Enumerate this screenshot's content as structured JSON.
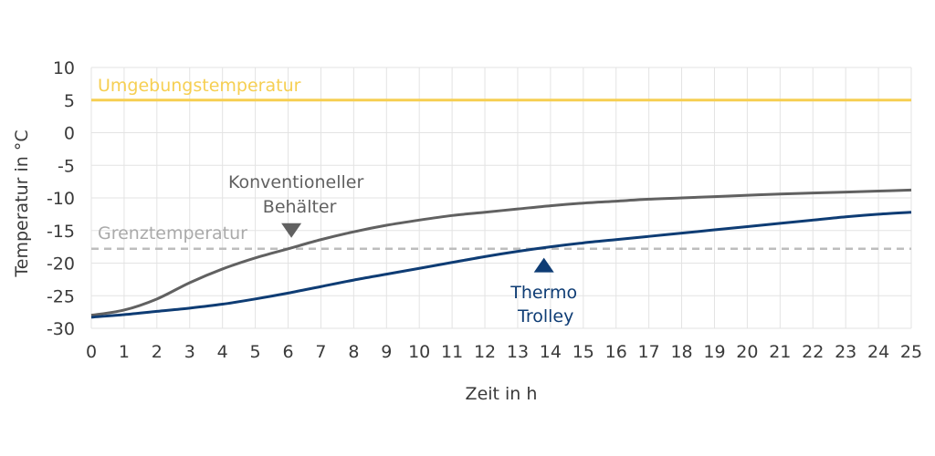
{
  "chart_data": {
    "type": "line",
    "title": "",
    "xlabel": "Zeit in h",
    "ylabel": "Temperatur in °C",
    "xlim": [
      0,
      25
    ],
    "ylim": [
      -30,
      10
    ],
    "x_ticks": [
      "0",
      "1",
      "2",
      "3",
      "4",
      "5",
      "6",
      "7",
      "8",
      "9",
      "10",
      "11",
      "12",
      "13",
      "14",
      "15",
      "16",
      "17",
      "18",
      "19",
      "20",
      "21",
      "22",
      "23",
      "24",
      "25"
    ],
    "y_ticks": [
      "10",
      "5",
      "0",
      "-5",
      "-10",
      "-15",
      "-20",
      "-25",
      "-30"
    ],
    "grid": true,
    "series": [
      {
        "name": "Konventioneller Behälter",
        "color": "#616161",
        "x": [
          0,
          1,
          2,
          3,
          4,
          5,
          6,
          7,
          8,
          9,
          10,
          11,
          12,
          13,
          14,
          15,
          16,
          17,
          18,
          19,
          20,
          21,
          22,
          23,
          24,
          25
        ],
        "y": [
          -28,
          -27.2,
          -25.5,
          -23,
          -20.9,
          -19.2,
          -17.8,
          -16.4,
          -15.2,
          -14.2,
          -13.4,
          -12.7,
          -12.2,
          -11.7,
          -11.2,
          -10.8,
          -10.5,
          -10.2,
          -10,
          -9.8,
          -9.6,
          -9.4,
          -9.25,
          -9.1,
          -8.95,
          -8.8
        ]
      },
      {
        "name": "Thermo Trolley",
        "color": "#0e3c74",
        "x": [
          0,
          1,
          2,
          3,
          4,
          5,
          6,
          7,
          8,
          9,
          10,
          11,
          12,
          13,
          14,
          15,
          16,
          17,
          18,
          19,
          20,
          21,
          22,
          23,
          24,
          25
        ],
        "y": [
          -28.3,
          -27.9,
          -27.4,
          -26.9,
          -26.3,
          -25.5,
          -24.6,
          -23.6,
          -22.6,
          -21.7,
          -20.8,
          -19.9,
          -19,
          -18.2,
          -17.5,
          -16.9,
          -16.4,
          -15.9,
          -15.4,
          -14.9,
          -14.4,
          -13.9,
          -13.4,
          -12.9,
          -12.5,
          -12.2
        ]
      },
      {
        "name": "Umgebungstemperatur",
        "color": "#f6cf52",
        "x": [
          0,
          25
        ],
        "y": [
          5,
          5
        ]
      },
      {
        "name": "Grenztemperatur",
        "color": "#bdbdbd",
        "dashed": true,
        "x": [
          0,
          25
        ],
        "y": [
          -17.8,
          -17.8
        ]
      }
    ],
    "annotations": [
      {
        "id": "konventionell",
        "lines": [
          "Konventioneller",
          "Behälter"
        ],
        "color": "#616161",
        "marker": "down-triangle",
        "x": 6.1,
        "y": -15
      },
      {
        "id": "thermo",
        "lines": [
          "Thermo",
          "Trolley"
        ],
        "color": "#0e3c74",
        "marker": "up-triangle",
        "x": 13.8,
        "y": -20.3
      }
    ],
    "line_labels": [
      {
        "text": "Umgebungstemperatur",
        "color": "#f6cf52"
      },
      {
        "text": "Grenztemperatur",
        "color": "#aaaaaa"
      }
    ]
  }
}
